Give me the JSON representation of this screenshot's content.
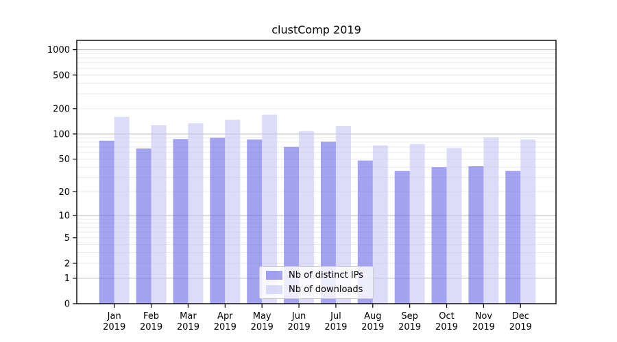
{
  "chart_data": {
    "type": "bar",
    "title": "clustComp 2019",
    "months": [
      "Jan",
      "Feb",
      "Mar",
      "Apr",
      "May",
      "Jun",
      "Jul",
      "Aug",
      "Sep",
      "Oct",
      "Nov",
      "Dec"
    ],
    "year": "2019",
    "series": [
      {
        "name": "Nb of distinct IPs",
        "color": "#6666e6",
        "alpha": 0.6,
        "values": [
          83,
          67,
          87,
          90,
          86,
          70,
          81,
          48,
          36,
          40,
          41,
          36
        ]
      },
      {
        "name": "Nb of downloads",
        "color": "#c5c5f3",
        "alpha": 0.6,
        "values": [
          160,
          127,
          134,
          148,
          170,
          108,
          125,
          73,
          76,
          68,
          91,
          86
        ]
      }
    ],
    "yscale": "log1p",
    "ylim": [
      0,
      1250
    ],
    "ytick_labels": [
      "0",
      "1",
      "2",
      "5",
      "10",
      "20",
      "50",
      "100",
      "200",
      "500",
      "1000"
    ],
    "grid": "on",
    "legend": {
      "position": "lower-center",
      "entries": [
        "Nb of distinct IPs",
        "Nb of downloads"
      ]
    }
  },
  "colors": {
    "axis": "#000000",
    "major_grid": "#c0c0c0",
    "minor_grid": "#e9e9e9",
    "legend_border": "#cccccc",
    "text": "#000000"
  }
}
